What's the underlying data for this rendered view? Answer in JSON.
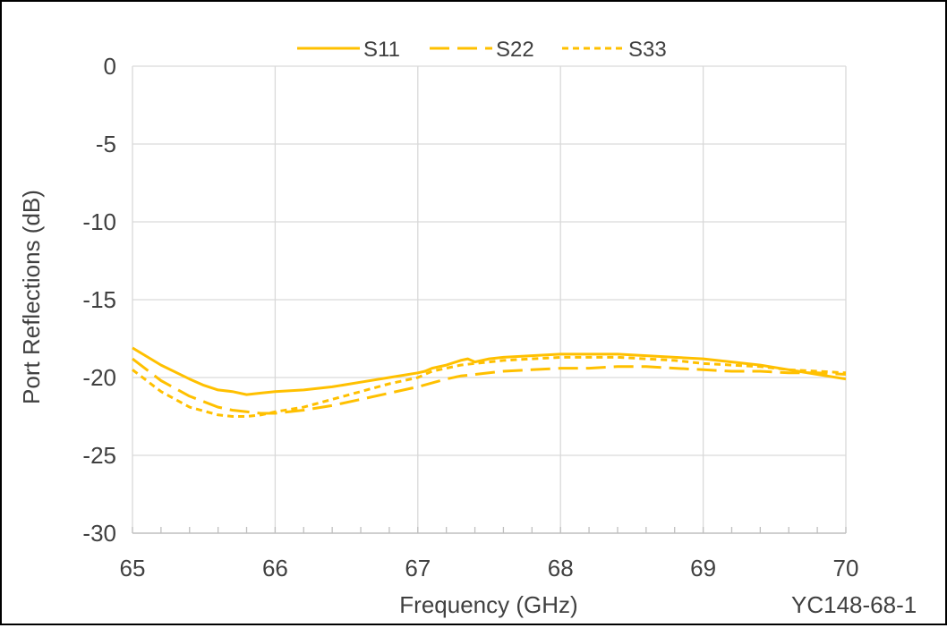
{
  "chart_data": {
    "type": "line",
    "title": "",
    "xlabel": "Frequency (GHz)",
    "ylabel": "Port Reflections (dB)",
    "xlim": [
      65,
      70
    ],
    "ylim": [
      -30,
      0
    ],
    "xticks": [
      65,
      66,
      67,
      68,
      69,
      70
    ],
    "yticks": [
      0,
      -5,
      -10,
      -15,
      -20,
      -25,
      -30
    ],
    "x_minor_step": 0.2,
    "grid": true,
    "legend_position": "top-center",
    "line_color": "#FFC000",
    "watermark": "YC148-68-1",
    "series": [
      {
        "name": "S11",
        "style": "solid",
        "x": [
          65.0,
          65.2,
          65.4,
          65.5,
          65.6,
          65.7,
          65.8,
          65.9,
          66.0,
          66.2,
          66.4,
          66.6,
          66.8,
          67.0,
          67.05,
          67.1,
          67.2,
          67.3,
          67.35,
          67.4,
          67.5,
          67.6,
          67.8,
          68.0,
          68.2,
          68.4,
          68.6,
          68.8,
          69.0,
          69.2,
          69.4,
          69.6,
          69.8,
          70.0
        ],
        "y": [
          -18.1,
          -19.2,
          -20.1,
          -20.5,
          -20.8,
          -20.9,
          -21.1,
          -21.0,
          -20.9,
          -20.8,
          -20.6,
          -20.3,
          -20.0,
          -19.7,
          -19.6,
          -19.4,
          -19.2,
          -18.9,
          -18.8,
          -19.0,
          -18.8,
          -18.7,
          -18.6,
          -18.5,
          -18.5,
          -18.5,
          -18.6,
          -18.7,
          -18.8,
          -19.0,
          -19.2,
          -19.5,
          -19.8,
          -20.1
        ]
      },
      {
        "name": "S22",
        "style": "dashed",
        "x": [
          65.0,
          65.2,
          65.4,
          65.6,
          65.7,
          65.8,
          65.9,
          66.0,
          66.2,
          66.4,
          66.6,
          66.8,
          67.0,
          67.2,
          67.3,
          67.4,
          67.6,
          67.8,
          68.0,
          68.2,
          68.4,
          68.6,
          68.8,
          69.0,
          69.2,
          69.4,
          69.6,
          69.8,
          70.0
        ],
        "y": [
          -18.8,
          -20.2,
          -21.2,
          -21.9,
          -22.1,
          -22.2,
          -22.3,
          -22.3,
          -22.1,
          -21.8,
          -21.4,
          -21.0,
          -20.6,
          -20.1,
          -19.9,
          -19.8,
          -19.6,
          -19.5,
          -19.4,
          -19.4,
          -19.3,
          -19.3,
          -19.4,
          -19.5,
          -19.6,
          -19.6,
          -19.7,
          -19.7,
          -19.8
        ]
      },
      {
        "name": "S33",
        "style": "dotted",
        "x": [
          65.0,
          65.2,
          65.4,
          65.6,
          65.7,
          65.8,
          65.9,
          66.0,
          66.2,
          66.4,
          66.6,
          66.8,
          67.0,
          67.1,
          67.2,
          67.3,
          67.4,
          67.5,
          67.6,
          67.8,
          68.0,
          68.2,
          68.4,
          68.6,
          68.8,
          69.0,
          69.2,
          69.4,
          69.6,
          69.8,
          70.0
        ],
        "y": [
          -19.5,
          -20.9,
          -21.9,
          -22.4,
          -22.5,
          -22.5,
          -22.4,
          -22.2,
          -21.9,
          -21.4,
          -20.9,
          -20.4,
          -20.0,
          -19.6,
          -19.4,
          -19.2,
          -19.1,
          -19.0,
          -18.9,
          -18.8,
          -18.7,
          -18.7,
          -18.7,
          -18.8,
          -18.9,
          -19.1,
          -19.2,
          -19.3,
          -19.5,
          -19.6,
          -19.7
        ]
      }
    ]
  }
}
